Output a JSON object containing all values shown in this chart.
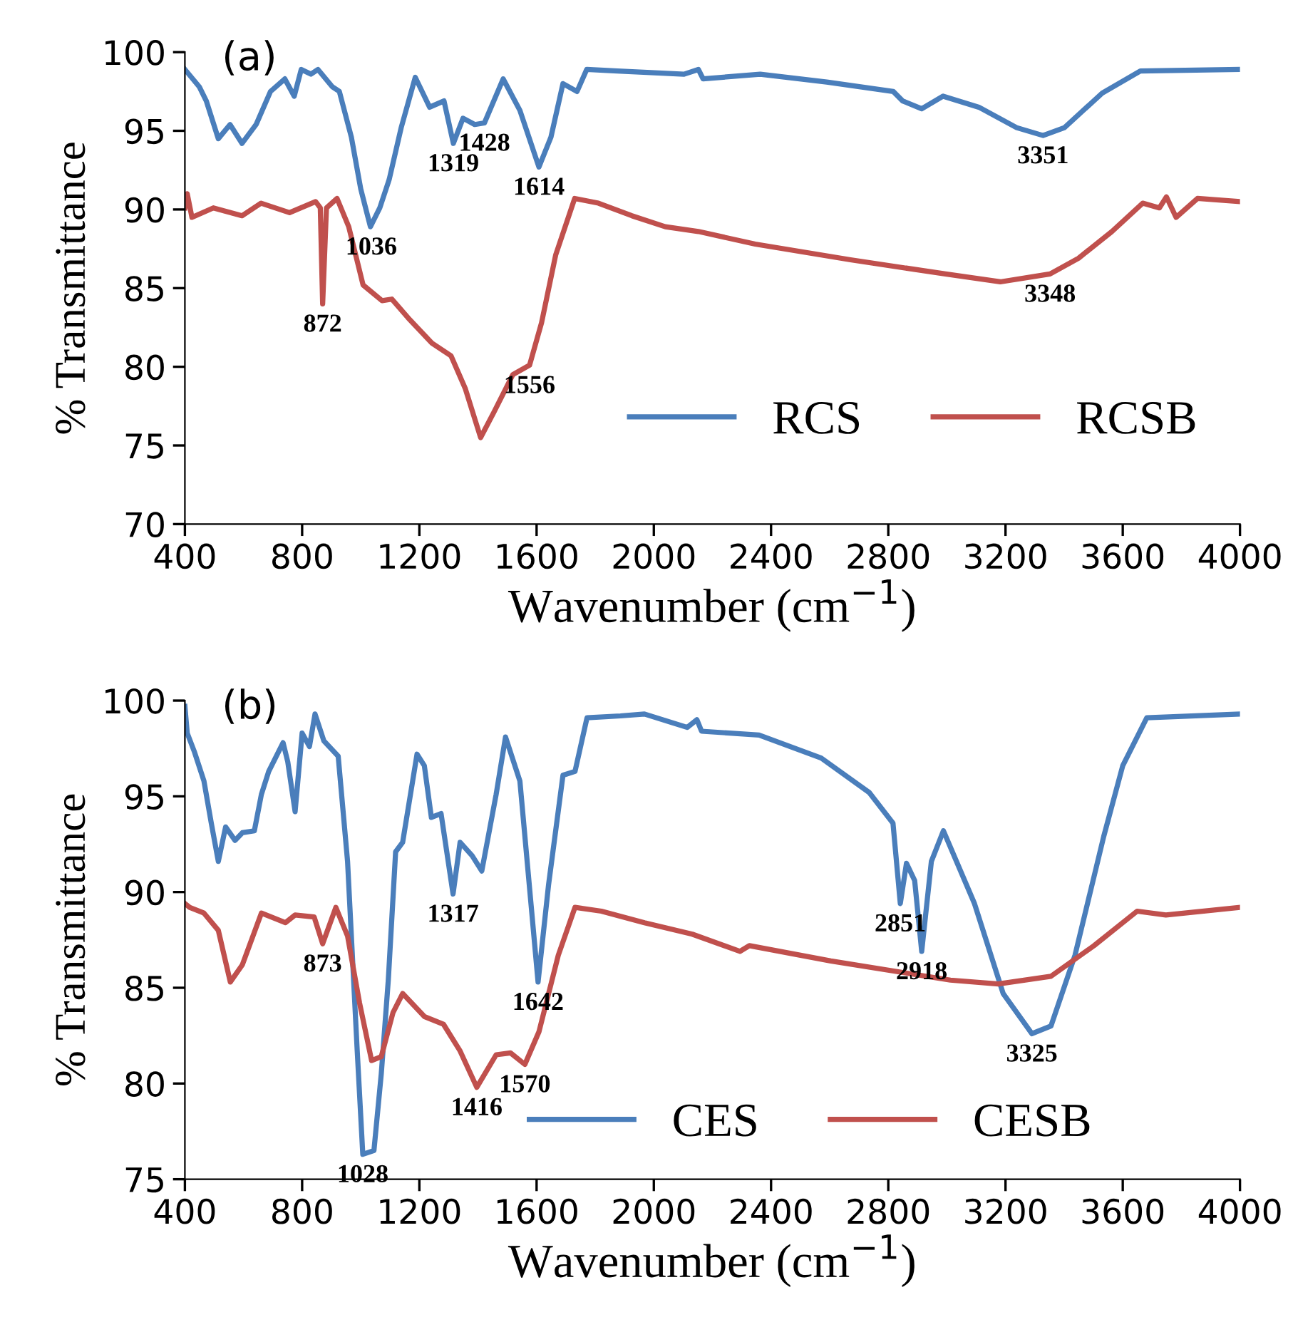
{
  "chart_data": [
    {
      "type": "line",
      "title": "(a)",
      "xlabel": "Wavenumber (cm$^{−1}$)",
      "ylabel": "% Transmittance",
      "xlim": [
        400,
        4000
      ],
      "xticks": [
        400,
        800,
        1200,
        1600,
        2000,
        2400,
        2800,
        3200,
        3600,
        4000
      ],
      "ylim": [
        70,
        100
      ],
      "yticks": [
        70,
        75,
        80,
        85,
        90,
        95,
        100
      ],
      "grid": false,
      "legend": "bottom right",
      "series": [
        {
          "name": "RCS",
          "color": "#4a7ebb",
          "x": [
            400,
            449,
            473,
            514,
            554,
            595,
            643,
            692,
            741,
            773,
            797,
            830,
            854,
            903,
            927,
            968,
            1000,
            1033,
            1065,
            1097,
            1138,
            1186,
            1235,
            1284,
            1316,
            1349,
            1389,
            1422,
            1486,
            1543,
            1608,
            1649,
            1690,
            1738,
            1771,
            1876,
            1990,
            2103,
            2152,
            2168,
            2363,
            2590,
            2817,
            2849,
            2914,
            2987,
            3109,
            3238,
            3328,
            3401,
            3530,
            3660,
            4000
          ],
          "values": [
            98.9,
            97.8,
            96.9,
            94.5,
            95.4,
            94.2,
            95.4,
            97.5,
            98.3,
            97.2,
            98.9,
            98.6,
            98.9,
            97.8,
            97.5,
            94.6,
            91.3,
            88.9,
            90.1,
            91.9,
            95.2,
            98.4,
            96.5,
            96.9,
            94.2,
            95.8,
            95.4,
            95.5,
            98.3,
            96.3,
            92.7,
            94.6,
            98.0,
            97.5,
            98.9,
            98.8,
            98.7,
            98.6,
            98.9,
            98.3,
            98.6,
            98.1,
            97.5,
            96.9,
            96.4,
            97.2,
            96.5,
            95.2,
            94.7,
            95.2,
            97.4,
            98.8,
            98.9
          ]
        },
        {
          "name": "RCSB",
          "color": "#c0504d",
          "x": [
            400,
            408,
            424,
            497,
            595,
            660,
            757,
            846,
            862,
            870,
            883,
            919,
            959,
            1008,
            1073,
            1106,
            1162,
            1243,
            1308,
            1357,
            1409,
            1454,
            1519,
            1576,
            1617,
            1665,
            1730,
            1811,
            1925,
            2039,
            2152,
            2346,
            2671,
            2995,
            3182,
            3352,
            3449,
            3563,
            3668,
            3725,
            3749,
            3782,
            3855,
            4000
          ],
          "values": [
            90.1,
            91.0,
            89.5,
            90.1,
            89.6,
            90.4,
            89.8,
            90.5,
            90.1,
            84.0,
            90.1,
            90.7,
            88.9,
            85.2,
            84.2,
            84.3,
            83.1,
            81.5,
            80.7,
            78.6,
            75.5,
            77.1,
            79.5,
            80.1,
            82.8,
            87.1,
            90.7,
            90.4,
            89.6,
            88.9,
            88.6,
            87.8,
            86.8,
            85.9,
            85.4,
            85.9,
            86.9,
            88.6,
            90.4,
            90.1,
            90.8,
            89.5,
            90.7,
            90.5
          ]
        }
      ],
      "annotations": [
        {
          "text": "1036",
          "x": 1036,
          "y": 88.9
        },
        {
          "text": "872",
          "x": 870,
          "y": 84.0
        },
        {
          "text": "1319",
          "x": 1316,
          "y": 94.2
        },
        {
          "text": "1428",
          "x": 1422,
          "y": 95.5
        },
        {
          "text": "1614",
          "x": 1608,
          "y": 92.7
        },
        {
          "text": "1556",
          "x": 1576,
          "y": 80.1
        },
        {
          "text": "3351",
          "x": 3328,
          "y": 94.7
        },
        {
          "text": "3348",
          "x": 3352,
          "y": 85.9
        }
      ]
    },
    {
      "type": "line",
      "title": "(b)",
      "xlabel": "Wavenumber (cm$^{−1}$)",
      "ylabel": "% Transmittance",
      "xlim": [
        400,
        4000
      ],
      "xticks": [
        400,
        800,
        1200,
        1600,
        2000,
        2400,
        2800,
        3200,
        3600,
        4000
      ],
      "ylim": [
        75,
        100
      ],
      "yticks": [
        75,
        80,
        85,
        90,
        95,
        100
      ],
      "grid": false,
      "legend": "bottom right",
      "series": [
        {
          "name": "CES",
          "color": "#4a7ebb",
          "x": [
            400,
            408,
            433,
            465,
            490,
            514,
            539,
            571,
            596,
            637,
            661,
            686,
            735,
            751,
            776,
            800,
            825,
            844,
            874,
            923,
            955,
            988,
            1007,
            1045,
            1070,
            1094,
            1119,
            1143,
            1192,
            1217,
            1241,
            1274,
            1315,
            1339,
            1380,
            1413,
            1462,
            1494,
            1543,
            1605,
            1641,
            1690,
            1731,
            1772,
            1886,
            1968,
            2114,
            2147,
            2163,
            2359,
            2571,
            2735,
            2816,
            2841,
            2862,
            2890,
            2914,
            2947,
            2988,
            3094,
            3192,
            3290,
            3355,
            3437,
            3535,
            3600,
            3682,
            4000
          ],
          "values": [
            99.7,
            98.3,
            97.3,
            95.8,
            93.6,
            91.6,
            93.4,
            92.7,
            93.1,
            93.2,
            95.1,
            96.3,
            97.8,
            96.8,
            94.2,
            98.3,
            97.6,
            99.3,
            97.9,
            97.1,
            91.6,
            81.7,
            76.3,
            76.5,
            80.5,
            85.4,
            92.1,
            92.6,
            97.2,
            96.6,
            93.9,
            94.1,
            89.9,
            92.6,
            91.9,
            91.1,
            95.1,
            98.1,
            95.8,
            85.3,
            90.4,
            96.1,
            96.3,
            99.1,
            99.2,
            99.3,
            98.6,
            99.0,
            98.4,
            98.2,
            97.0,
            95.2,
            93.6,
            89.4,
            91.5,
            90.6,
            86.9,
            91.6,
            93.2,
            89.4,
            84.7,
            82.6,
            83.0,
            86.7,
            92.9,
            96.6,
            99.1,
            99.3
          ]
        },
        {
          "name": "CESB",
          "color": "#c0504d",
          "x": [
            400,
            416,
            465,
            514,
            555,
            596,
            661,
            743,
            776,
            841,
            870,
            915,
            955,
            996,
            1037,
            1070,
            1110,
            1143,
            1217,
            1282,
            1339,
            1396,
            1462,
            1511,
            1560,
            1608,
            1674,
            1731,
            1821,
            1968,
            2131,
            2294,
            2326,
            2604,
            2849,
            3012,
            3175,
            3355,
            3502,
            3649,
            3747,
            4000
          ],
          "values": [
            89.4,
            89.2,
            88.9,
            88.0,
            85.3,
            86.2,
            88.9,
            88.4,
            88.8,
            88.7,
            87.3,
            89.2,
            87.7,
            84.2,
            81.2,
            81.4,
            83.7,
            84.7,
            83.5,
            83.1,
            81.7,
            79.8,
            81.5,
            81.6,
            81.0,
            82.7,
            86.7,
            89.2,
            89.0,
            88.4,
            87.8,
            86.9,
            87.2,
            86.4,
            85.8,
            85.4,
            85.2,
            85.6,
            87.2,
            89.0,
            88.8,
            89.2
          ]
        }
      ],
      "annotations": [
        {
          "text": "1028",
          "x": 1007,
          "y": 76.3
        },
        {
          "text": "873",
          "x": 870,
          "y": 87.3
        },
        {
          "text": "1317",
          "x": 1315,
          "y": 89.9
        },
        {
          "text": "1416",
          "x": 1396,
          "y": 79.8
        },
        {
          "text": "1570",
          "x": 1560,
          "y": 81.0
        },
        {
          "text": "1642",
          "x": 1605,
          "y": 85.3
        },
        {
          "text": "2851",
          "x": 2841,
          "y": 89.4
        },
        {
          "text": "2918",
          "x": 2914,
          "y": 86.9
        },
        {
          "text": "3325",
          "x": 3290,
          "y": 82.6
        }
      ]
    }
  ]
}
